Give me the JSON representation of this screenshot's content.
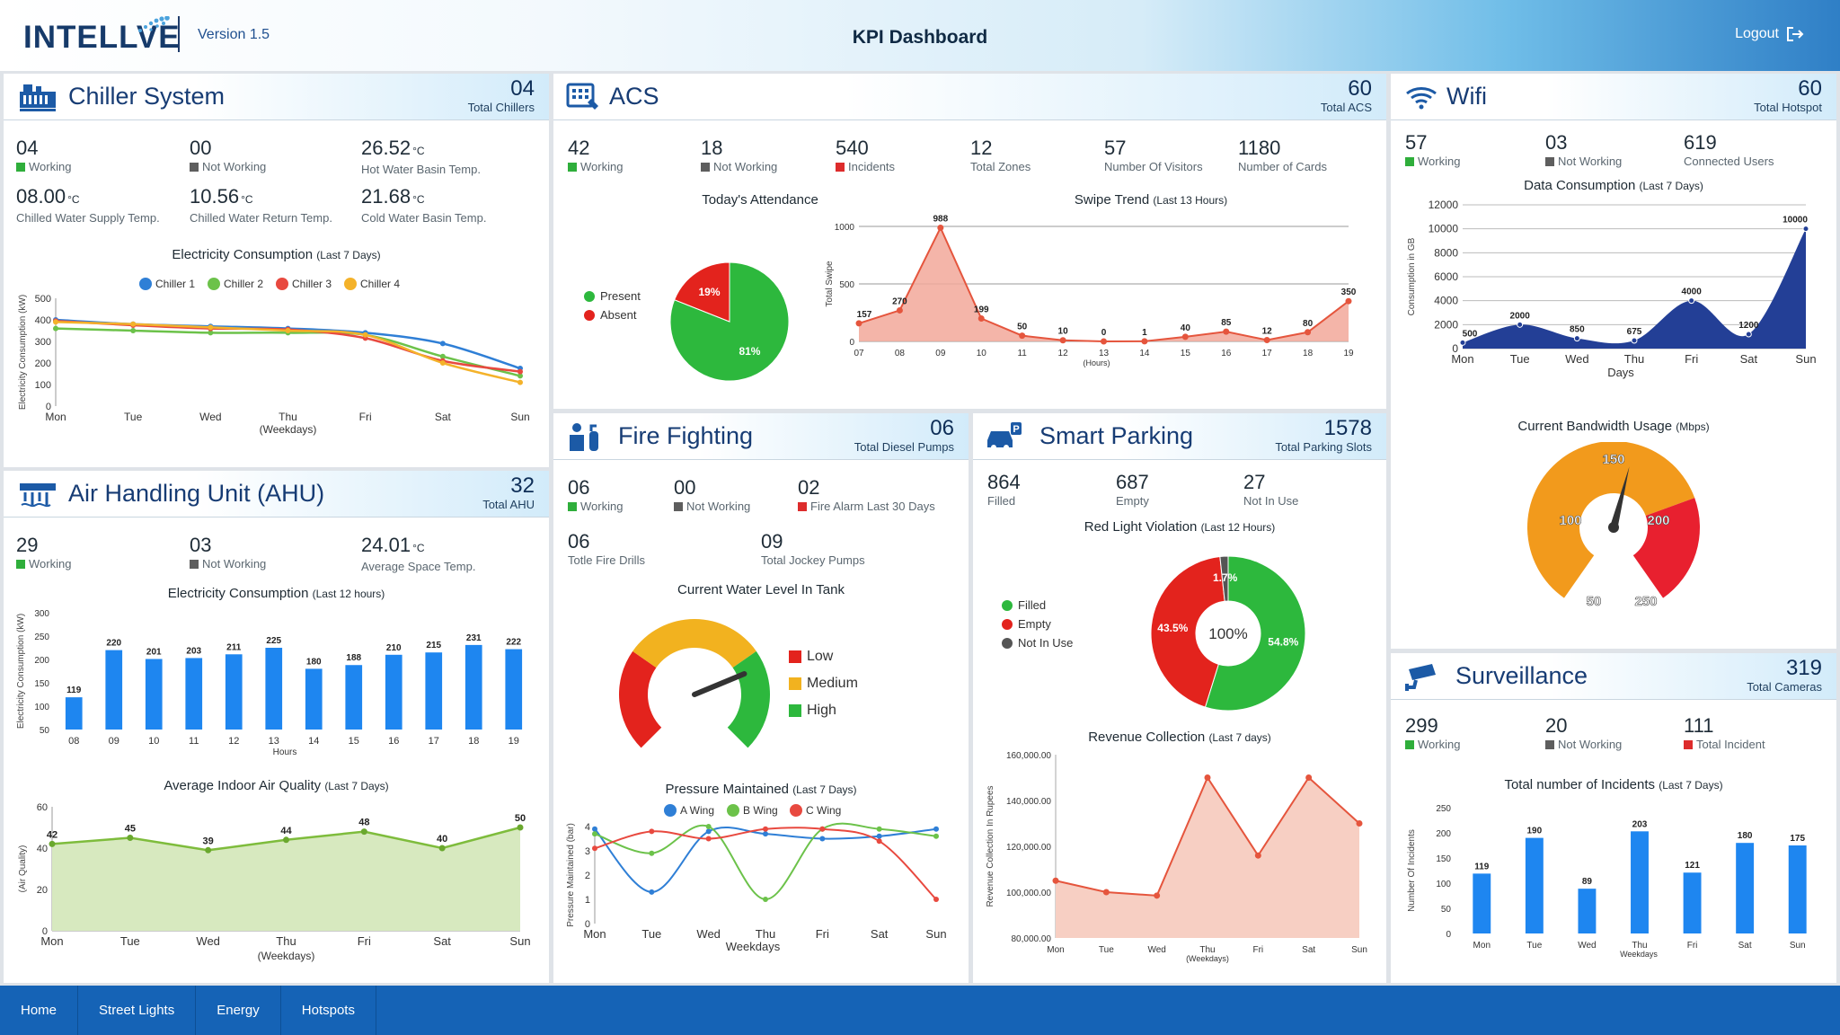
{
  "header": {
    "logo": "INTELLVE",
    "version": "Version 1.5",
    "title": "KPI Dashboard",
    "logout": "Logout"
  },
  "chiller": {
    "title": "Chiller System",
    "count": "04",
    "count_label": "Total Chillers",
    "kpis": [
      {
        "v": "04",
        "l": "Working",
        "c": "g"
      },
      {
        "v": "00",
        "l": "Not Working",
        "c": "k"
      },
      {
        "v": "26.52",
        "u": "°C",
        "l": "Hot Water Basin Temp."
      },
      {
        "v": "08.00",
        "u": "°C",
        "l": "Chilled Water Supply Temp."
      },
      {
        "v": "10.56",
        "u": "°C",
        "l": "Chilled Water Return Temp."
      },
      {
        "v": "21.68",
        "u": "°C",
        "l": "Cold Water Basin Temp."
      }
    ]
  },
  "chiller_chart": {
    "type": "line",
    "title": "Electricity Consumption",
    "subtitle": "(Last 7 Days)",
    "ylabel": "Electricity Consumption (kW)",
    "xlabel": "(Weekdays)",
    "ylim": [
      0,
      500
    ],
    "yticks": [
      0,
      100,
      200,
      300,
      400,
      500
    ],
    "categories": [
      "Mon",
      "Tue",
      "Wed",
      "Thu",
      "Fri",
      "Sat",
      "Sun"
    ],
    "series": [
      {
        "name": "Chiller 1",
        "color": "#2f7fd6",
        "values": [
          400,
          380,
          370,
          360,
          340,
          290,
          175
        ]
      },
      {
        "name": "Chiller 2",
        "color": "#6cc24a",
        "values": [
          360,
          350,
          340,
          340,
          330,
          230,
          140
        ]
      },
      {
        "name": "Chiller 3",
        "color": "#e8493f",
        "values": [
          395,
          375,
          360,
          355,
          315,
          210,
          160
        ]
      },
      {
        "name": "Chiller 4",
        "color": "#f4b22a",
        "values": [
          390,
          380,
          365,
          350,
          330,
          200,
          110
        ]
      }
    ]
  },
  "ahu": {
    "title": "Air Handling Unit (AHU)",
    "count": "32",
    "count_label": "Total AHU",
    "kpis": [
      {
        "v": "29",
        "l": "Working",
        "c": "g"
      },
      {
        "v": "03",
        "l": "Not Working",
        "c": "k"
      },
      {
        "v": "24.01",
        "u": "°C",
        "l": "Average Space Temp."
      }
    ]
  },
  "ahu_chart": {
    "type": "bar",
    "title": "Electricity Consumption",
    "subtitle": "(Last 12 hours)",
    "ylabel": "Electricity Consumption (kW)",
    "xlabel": "Hours",
    "ylim": [
      50,
      300
    ],
    "yticks": [
      50,
      100,
      150,
      200,
      250,
      300
    ],
    "categories": [
      "08",
      "09",
      "10",
      "11",
      "12",
      "13",
      "14",
      "15",
      "16",
      "17",
      "18",
      "19"
    ],
    "values": [
      119,
      220,
      201,
      203,
      211,
      225,
      180,
      188,
      210,
      215,
      231,
      222
    ]
  },
  "aqi_chart": {
    "type": "area",
    "title": "Average Indoor Air Quality",
    "subtitle": "(Last 7 Days)",
    "ylabel": "(Air Quality)",
    "xlabel": "(Weekdays)",
    "ylim": [
      0,
      60
    ],
    "yticks": [
      0,
      20,
      40,
      60
    ],
    "categories": [
      "Mon",
      "Tue",
      "Wed",
      "Thu",
      "Fri",
      "Sat",
      "Sun"
    ],
    "values": [
      42,
      45,
      39,
      44,
      48,
      40,
      50
    ]
  },
  "acs": {
    "title": "ACS",
    "count": "60",
    "count_label": "Total ACS",
    "kpis": [
      {
        "v": "42",
        "l": "Working",
        "c": "g"
      },
      {
        "v": "18",
        "l": "Not Working",
        "c": "k"
      },
      {
        "v": "540",
        "l": "Incidents",
        "c": "r"
      },
      {
        "v": "12",
        "l": "Total Zones"
      },
      {
        "v": "57",
        "l": "Number Of Visitors"
      },
      {
        "v": "1180",
        "l": "Number of Cards"
      }
    ]
  },
  "attendance": {
    "type": "pie",
    "title": "Today's Attendance",
    "labels": [
      "Present",
      "Absent"
    ],
    "values": [
      81,
      19
    ],
    "display": [
      "81%",
      "19%"
    ],
    "colors": [
      "#2db83d",
      "#e3231d"
    ]
  },
  "swipe": {
    "type": "area",
    "title": "Swipe Trend",
    "subtitle": "(Last 13 Hours)",
    "ylabel": "Total Swipe",
    "xlabel": "(Hours)",
    "ylim": [
      0,
      1000
    ],
    "yticks": [
      0,
      500,
      1000
    ],
    "categories": [
      "07",
      "08",
      "09",
      "10",
      "11",
      "12",
      "13",
      "14",
      "15",
      "16",
      "17",
      "18",
      "19"
    ],
    "values": [
      157,
      270,
      988,
      199,
      50,
      10,
      0,
      1,
      40,
      85,
      12,
      80,
      350
    ]
  },
  "fire": {
    "title": "Fire Fighting",
    "count": "06",
    "count_label": "Total Diesel Pumps",
    "kpis": [
      {
        "v": "06",
        "l": "Working",
        "c": "g"
      },
      {
        "v": "00",
        "l": "Not Working",
        "c": "k"
      },
      {
        "v": "02",
        "l": "Fire Alarm Last 30 Days",
        "c": "r"
      },
      {
        "v": "06",
        "l": "Totle Fire Drills"
      },
      {
        "v": "09",
        "l": "Total Jockey Pumps"
      }
    ]
  },
  "water": {
    "title": "Current Water Level In Tank",
    "legend": [
      "Low",
      "Medium",
      "High"
    ],
    "colors": [
      "#e3231d",
      "#f2b21f",
      "#2db83d"
    ],
    "level": 0.75
  },
  "pressure": {
    "type": "line",
    "title": "Pressure Maintained",
    "subtitle": "(Last 7 Days)",
    "ylabel": "Pressure Maintained (bar)",
    "xlabel": "Weekdays",
    "ylim": [
      0,
      4
    ],
    "yticks": [
      0,
      1,
      2,
      3,
      4
    ],
    "categories": [
      "Mon",
      "Tue",
      "Wed",
      "Thu",
      "Fri",
      "Sat",
      "Sun"
    ],
    "series": [
      {
        "name": "A Wing",
        "color": "#2f7fd6",
        "values": [
          3.9,
          1.3,
          3.8,
          3.7,
          3.5,
          3.6,
          3.9
        ]
      },
      {
        "name": "B Wing",
        "color": "#6cc24a",
        "values": [
          3.7,
          2.9,
          4.0,
          1.0,
          3.9,
          3.9,
          3.6
        ]
      },
      {
        "name": "C Wing",
        "color": "#e8493f",
        "values": [
          3.1,
          3.8,
          3.5,
          3.9,
          3.9,
          3.4,
          1.0
        ]
      }
    ]
  },
  "parking": {
    "title": "Smart Parking",
    "count": "1578",
    "count_label": "Total Parking Slots",
    "kpis": [
      {
        "v": "864",
        "l": "Filled"
      },
      {
        "v": "687",
        "l": "Empty"
      },
      {
        "v": "27",
        "l": "Not In Use"
      }
    ]
  },
  "violation": {
    "type": "pie",
    "title": "Red Light Violation",
    "subtitle": "(Last 12 Hours)",
    "center": "100%",
    "labels": [
      "Filled",
      "Empty",
      "Not In Use"
    ],
    "values": [
      54.8,
      43.5,
      1.7
    ],
    "display": [
      "54.8%",
      "43.5%",
      "1.7%"
    ],
    "colors": [
      "#2db83d",
      "#e3231d",
      "#555555"
    ]
  },
  "revenue": {
    "type": "area",
    "title": "Revenue Collection",
    "subtitle": "(Last 7 days)",
    "ylabel": "Revenue Collection In Rupees",
    "xlabel": "(Weekdays)",
    "ylim": [
      80000,
      160000
    ],
    "yticks": [
      "80,000.00",
      "100,000.00",
      "120,000.00",
      "140,000.00",
      "160,000.00"
    ],
    "categories": [
      "Mon",
      "Tue",
      "Wed",
      "Thu",
      "Fri",
      "Sat",
      "Sun"
    ],
    "values": [
      105000,
      100000,
      98500,
      150000,
      116000,
      150000,
      130000
    ]
  },
  "wifi": {
    "title": "Wifi",
    "count": "60",
    "count_label": "Total Hotspot",
    "kpis": [
      {
        "v": "57",
        "l": "Working",
        "c": "g"
      },
      {
        "v": "03",
        "l": "Not Working",
        "c": "k"
      },
      {
        "v": "619",
        "l": "Connected Users"
      }
    ]
  },
  "data": {
    "type": "area",
    "title": "Data Consumption",
    "subtitle": "(Last 7 Days)",
    "ylabel": "Consumption in GB",
    "xlabel": "Days",
    "ylim": [
      0,
      12000
    ],
    "yticks": [
      0,
      2000,
      4000,
      6000,
      8000,
      10000,
      12000
    ],
    "categories": [
      "Mon",
      "Tue",
      "Wed",
      "Thu",
      "Fri",
      "Sat",
      "Sun"
    ],
    "values": [
      500,
      2000,
      850,
      675,
      4000,
      1200,
      10000
    ]
  },
  "bandwidth": {
    "title": "Current Bandwidth Usage",
    "subtitle": "(Mbps)",
    "labels": [
      "50",
      "100",
      "150",
      "200",
      "250"
    ],
    "value": 160
  },
  "surv": {
    "title": "Surveillance",
    "count": "319",
    "count_label": "Total Cameras",
    "kpis": [
      {
        "v": "299",
        "l": "Working",
        "c": "g"
      },
      {
        "v": "20",
        "l": "Not Working",
        "c": "k"
      },
      {
        "v": "111",
        "l": "Total Incident",
        "c": "r"
      }
    ]
  },
  "incidents": {
    "type": "bar",
    "title": "Total number of Incidents",
    "subtitle": "(Last 7 Days)",
    "ylabel": "Number Of Incidents",
    "xlabel": "Weekdays",
    "ylim": [
      0,
      250
    ],
    "yticks": [
      0,
      50,
      100,
      150,
      200,
      250
    ],
    "categories": [
      "Mon",
      "Tue",
      "Wed",
      "Thu",
      "Fri",
      "Sat",
      "Sun"
    ],
    "values": [
      119,
      190,
      89,
      203,
      121,
      180,
      175
    ]
  },
  "nav": [
    "Home",
    "Street Lights",
    "Energy",
    "Hotspots"
  ]
}
